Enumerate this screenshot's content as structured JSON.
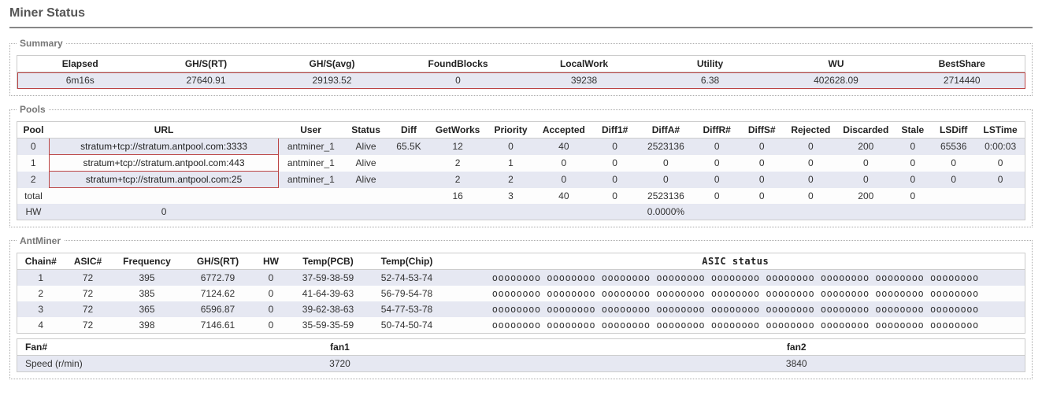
{
  "page_title": "Miner Status",
  "colors": {
    "stripe_odd": "#e6e8f2",
    "stripe_even": "#fdfdfd",
    "border": "#cccccc",
    "highlight_border": "#b44444",
    "legend_text": "#777777"
  },
  "summary": {
    "legend": "Summary",
    "headers": [
      "Elapsed",
      "GH/S(RT)",
      "GH/S(avg)",
      "FoundBlocks",
      "LocalWork",
      "Utility",
      "WU",
      "BestShare"
    ],
    "row": [
      "6m16s",
      "27640.91",
      "29193.52",
      "0",
      "39238",
      "6.38",
      "402628.09",
      "2714440"
    ]
  },
  "pools": {
    "legend": "Pools",
    "headers": [
      "Pool",
      "URL",
      "User",
      "Status",
      "Diff",
      "GetWorks",
      "Priority",
      "Accepted",
      "Diff1#",
      "DiffA#",
      "DiffR#",
      "DiffS#",
      "Rejected",
      "Discarded",
      "Stale",
      "LSDiff",
      "LSTime"
    ],
    "rows": [
      [
        "0",
        "stratum+tcp://stratum.antpool.com:3333",
        "antminer_1",
        "Alive",
        "65.5K",
        "12",
        "0",
        "40",
        "0",
        "2523136",
        "0",
        "0",
        "0",
        "200",
        "0",
        "65536",
        "0:00:03"
      ],
      [
        "1",
        "stratum+tcp://stratum.antpool.com:443",
        "antminer_1",
        "Alive",
        "",
        "2",
        "1",
        "0",
        "0",
        "0",
        "0",
        "0",
        "0",
        "0",
        "0",
        "0",
        "0"
      ],
      [
        "2",
        "stratum+tcp://stratum.antpool.com:25",
        "antminer_1",
        "Alive",
        "",
        "2",
        "2",
        "0",
        "0",
        "0",
        "0",
        "0",
        "0",
        "0",
        "0",
        "0",
        "0"
      ]
    ],
    "total_label": "total",
    "total_row": [
      "",
      "",
      "",
      "",
      "",
      "16",
      "3",
      "40",
      "0",
      "2523136",
      "0",
      "0",
      "0",
      "200",
      "0",
      "",
      ""
    ],
    "hw_label": "HW",
    "hw_row": [
      "",
      "0",
      "",
      "",
      "",
      "",
      "",
      "",
      "",
      "0.0000%",
      "",
      "",
      "",
      "",
      "",
      "",
      ""
    ]
  },
  "antminer": {
    "legend": "AntMiner",
    "headers": [
      "Chain#",
      "ASIC#",
      "Frequency",
      "GH/S(RT)",
      "HW",
      "Temp(PCB)",
      "Temp(Chip)",
      "ASIC status"
    ],
    "rows": [
      [
        "1",
        "72",
        "395",
        "6772.79",
        "0",
        "37-59-38-59",
        "52-74-53-74",
        "oooooooo oooooooo oooooooo oooooooo oooooooo oooooooo oooooooo oooooooo oooooooo"
      ],
      [
        "2",
        "72",
        "385",
        "7124.62",
        "0",
        "41-64-39-63",
        "56-79-54-78",
        "oooooooo oooooooo oooooooo oooooooo oooooooo oooooooo oooooooo oooooooo oooooooo"
      ],
      [
        "3",
        "72",
        "365",
        "6596.87",
        "0",
        "39-62-38-63",
        "54-77-53-78",
        "oooooooo oooooooo oooooooo oooooooo oooooooo oooooooo oooooooo oooooooo oooooooo"
      ],
      [
        "4",
        "72",
        "398",
        "7146.61",
        "0",
        "35-59-35-59",
        "50-74-50-74",
        "oooooooo oooooooo oooooooo oooooooo oooooooo oooooooo oooooooo oooooooo oooooooo"
      ]
    ],
    "fan_headers": [
      "Fan#",
      "fan1",
      "fan2"
    ],
    "fan_row_label": "Speed (r/min)",
    "fan_row": [
      "3720",
      "3840"
    ]
  }
}
